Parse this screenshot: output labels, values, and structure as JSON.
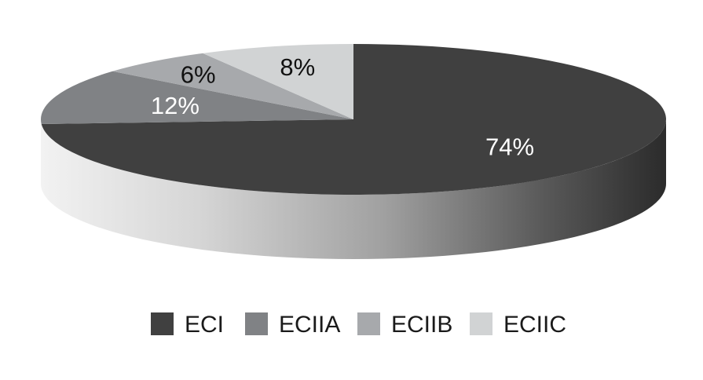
{
  "chart_data": {
    "type": "pie",
    "style": "3d",
    "categories": [
      "ECI",
      "ECIIA",
      "ECIIB",
      "ECIIC"
    ],
    "values": [
      74,
      12,
      6,
      8
    ],
    "value_labels": [
      "74%",
      "12%",
      "6%",
      "8%"
    ],
    "colors": [
      "#404040",
      "#808285",
      "#a7a9ac",
      "#d1d3d4"
    ],
    "legend_position": "bottom",
    "title": ""
  }
}
